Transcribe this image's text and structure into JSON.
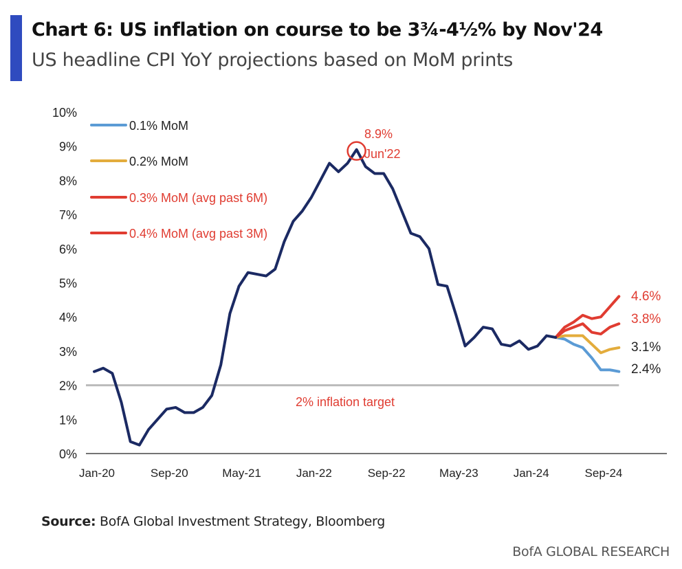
{
  "title": "Chart 6: US inflation on course to be 3¾-4½% by Nov'24",
  "subtitle": "US headline CPI YoY projections based on MoM prints",
  "source_label": "Source:",
  "source_text": "BofA Global Investment Strategy, Bloomberg",
  "brand": "BofA GLOBAL RESEARCH",
  "chart_data": {
    "type": "line",
    "ylim": [
      0,
      10
    ],
    "yticks": [
      "0%",
      "1%",
      "2%",
      "3%",
      "4%",
      "5%",
      "6%",
      "7%",
      "8%",
      "9%",
      "10%"
    ],
    "xstart": "Jan-20",
    "xticks": [
      {
        "index": 0,
        "label": "Jan-20"
      },
      {
        "index": 8,
        "label": "Sep-20"
      },
      {
        "index": 16,
        "label": "May-21"
      },
      {
        "index": 24,
        "label": "Jan-22"
      },
      {
        "index": 32,
        "label": "Sep-22"
      },
      {
        "index": 40,
        "label": "May-23"
      },
      {
        "index": 48,
        "label": "Jan-24"
      },
      {
        "index": 56,
        "label": "Sep-24"
      }
    ],
    "actual": {
      "name": "US headline CPI YoY",
      "color": "#1b2a63",
      "values": [
        2.4,
        2.5,
        2.35,
        1.5,
        0.35,
        0.25,
        0.7,
        1.0,
        1.3,
        1.35,
        1.2,
        1.2,
        1.35,
        1.7,
        2.6,
        4.1,
        4.9,
        5.3,
        5.25,
        5.2,
        5.4,
        6.2,
        6.8,
        7.1,
        7.5,
        8.0,
        8.5,
        8.25,
        8.5,
        8.9,
        8.4,
        8.2,
        8.2,
        7.75,
        7.1,
        6.45,
        6.35,
        6.0,
        4.95,
        4.9,
        4.05,
        3.15,
        3.4,
        3.7,
        3.65,
        3.2,
        3.15,
        3.3,
        3.05,
        3.15,
        3.45,
        3.4
      ]
    },
    "projection_start_index": 51,
    "series": [
      {
        "name": "0.1% MoM",
        "color": "#5b9bd5",
        "label_color": "#222",
        "end_label": "2.4%",
        "values": [
          3.35,
          3.2,
          3.1,
          2.8,
          2.45,
          2.45,
          2.4
        ]
      },
      {
        "name": "0.2% MoM",
        "color": "#e3ac3c",
        "label_color": "#222",
        "end_label": "3.1%",
        "values": [
          3.45,
          3.45,
          3.45,
          3.2,
          2.95,
          3.05,
          3.1
        ]
      },
      {
        "name": "0.3% MoM (avg past 6M)",
        "color": "#e03c31",
        "label_color": "#e03c31",
        "end_label": "3.8%",
        "values": [
          3.6,
          3.7,
          3.8,
          3.55,
          3.5,
          3.7,
          3.8
        ]
      },
      {
        "name": "0.4% MoM (avg past 3M)",
        "color": "#e03c31",
        "label_color": "#e03c31",
        "end_label": "4.6%",
        "values": [
          3.7,
          3.85,
          4.05,
          3.95,
          4.0,
          4.3,
          4.6
        ]
      }
    ],
    "target": {
      "value": 2,
      "label": "2% inflation target",
      "color": "#bbbbbb"
    },
    "peak_annotation": {
      "index": 29,
      "value": 8.9,
      "line1": "8.9%",
      "line2": "Jun'22"
    },
    "legend_placement": "top-left",
    "grid": false
  }
}
